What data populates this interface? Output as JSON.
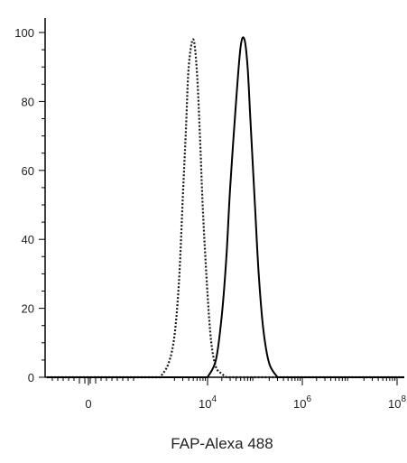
{
  "chart_data": {
    "type": "line",
    "title": "",
    "xlabel": "FAP-Alexa 488",
    "ylabel": "",
    "x_scale": "biexponential",
    "x_ticks": [
      {
        "value": 0,
        "base": "0",
        "exp": ""
      },
      {
        "value": 10000,
        "base": "10",
        "exp": "4"
      },
      {
        "value": 1000000,
        "base": "10",
        "exp": "6"
      },
      {
        "value": 100000000,
        "base": "10",
        "exp": "8"
      }
    ],
    "ylim": [
      0,
      100
    ],
    "y_ticks": [
      "0",
      "20",
      "40",
      "60",
      "80",
      "100"
    ],
    "grid": false,
    "legend": "none",
    "series": [
      {
        "style": "dotted",
        "color": "#1a1a1a",
        "x": [
          1000,
          1500,
          2000,
          2500,
          3000,
          3500,
          4000,
          5000,
          6000,
          7000,
          8000,
          10000,
          12000,
          15000,
          20000,
          25000
        ],
        "y": [
          0,
          4,
          12,
          28,
          52,
          72,
          90,
          98,
          88,
          68,
          48,
          24,
          10,
          3,
          1,
          0
        ]
      },
      {
        "style": "solid",
        "color": "#000000",
        "x": [
          10000,
          15000,
          20000,
          25000,
          30000,
          40000,
          50000,
          60000,
          70000,
          80000,
          100000,
          120000,
          150000,
          200000,
          300000
        ],
        "y": [
          0,
          5,
          18,
          35,
          55,
          80,
          96,
          98,
          90,
          75,
          50,
          30,
          14,
          4,
          0
        ]
      }
    ]
  }
}
